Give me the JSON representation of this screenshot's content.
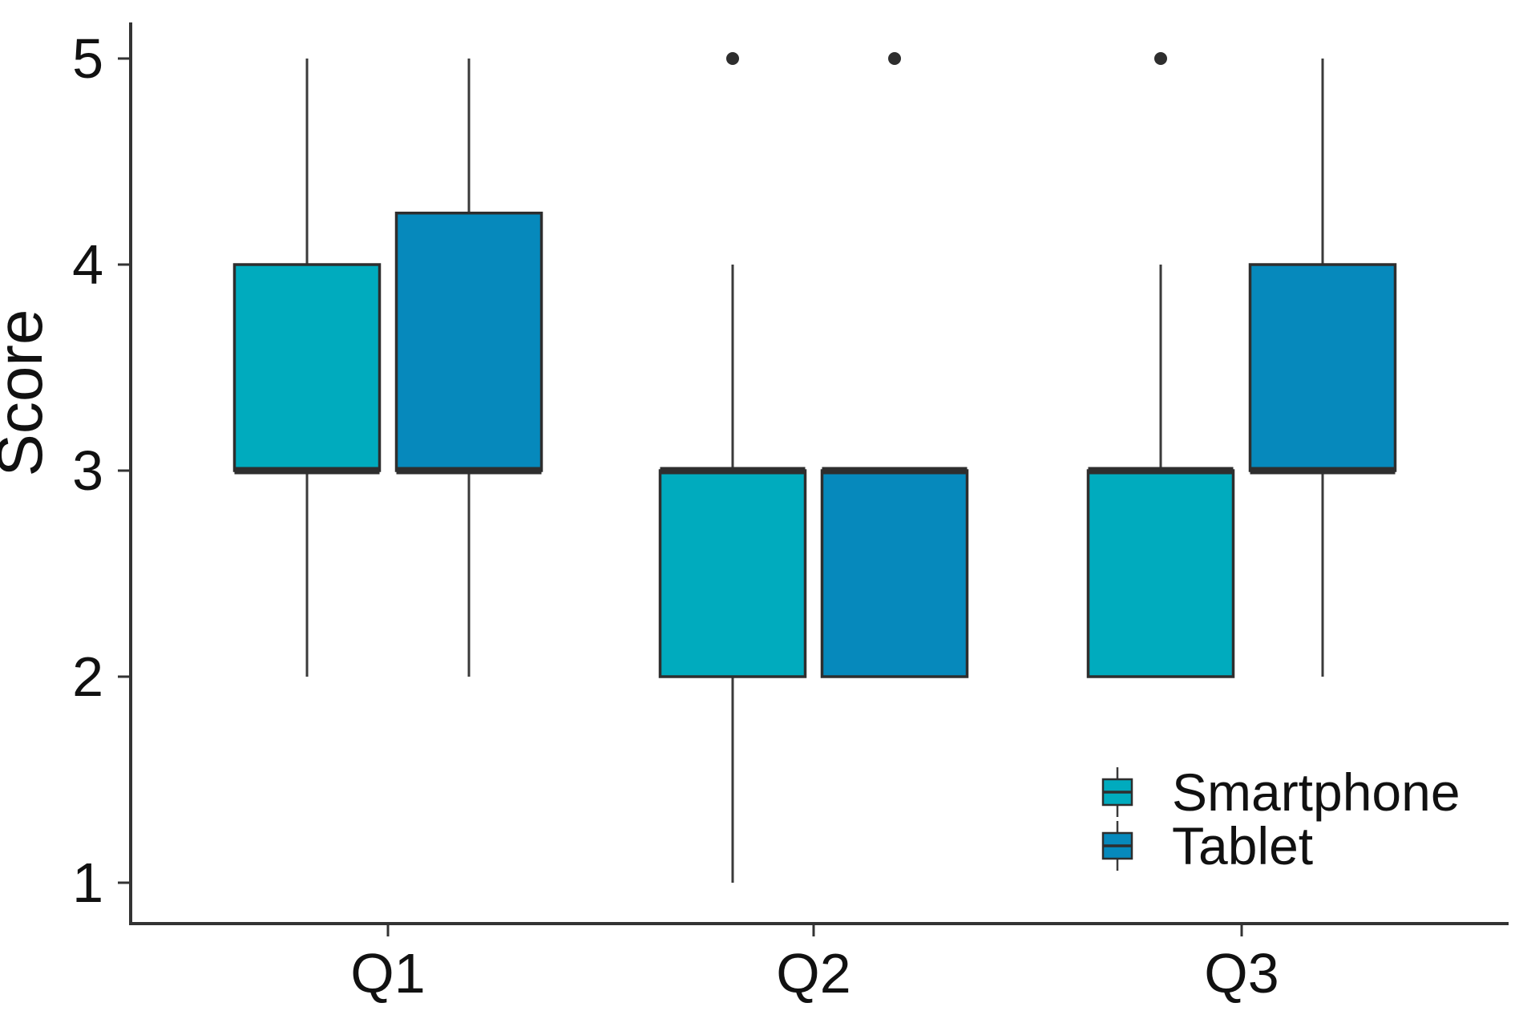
{
  "chart_data": {
    "type": "boxplot",
    "title": "",
    "xlabel": "",
    "ylabel": "Score",
    "categories": [
      "Q1",
      "Q2",
      "Q3"
    ],
    "yticks": [
      5,
      4,
      3,
      2,
      1
    ],
    "ylim": [
      1,
      5
    ],
    "grid": false,
    "legend_position": "bottom-right",
    "series": [
      {
        "name": "Smartphone",
        "color": "#00ABBE",
        "boxes": [
          {
            "category": "Q1",
            "whisker_low": 2,
            "q1": 3,
            "median": 3,
            "q3": 4,
            "whisker_high": 5,
            "outliers": []
          },
          {
            "category": "Q2",
            "whisker_low": 1,
            "q1": 2,
            "median": 3,
            "q3": 3,
            "whisker_high": 4,
            "outliers": [
              5
            ]
          },
          {
            "category": "Q3",
            "whisker_low": 2,
            "q1": 2,
            "median": 3,
            "q3": 3,
            "whisker_high": 4,
            "outliers": [
              5
            ]
          }
        ]
      },
      {
        "name": "Tablet",
        "color": "#0689BC",
        "boxes": [
          {
            "category": "Q1",
            "whisker_low": 2,
            "q1": 3,
            "median": 3,
            "q3": 4.25,
            "whisker_high": 5,
            "outliers": []
          },
          {
            "category": "Q2",
            "whisker_low": 2,
            "q1": 2,
            "median": 3,
            "q3": 3,
            "whisker_high": 3,
            "outliers": [
              5
            ]
          },
          {
            "category": "Q3",
            "whisker_low": 2,
            "q1": 3,
            "median": 3,
            "q3": 4,
            "whisker_high": 5,
            "outliers": []
          }
        ]
      }
    ],
    "styles": {
      "box_border": "#2E2E2E",
      "whisker_color": "#3A3A3A",
      "axis_color": "#333333",
      "text_color": "#111111",
      "outlier_color": "#2E2E2E",
      "background": "#FFFFFF"
    }
  }
}
